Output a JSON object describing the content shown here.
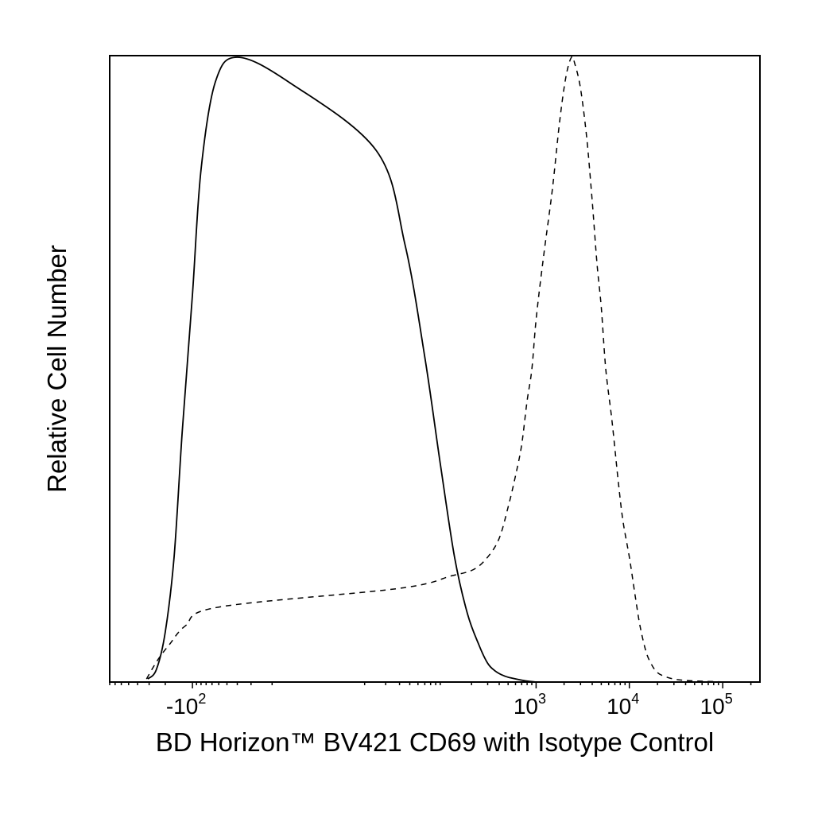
{
  "chart_data": {
    "type": "line",
    "title": "",
    "xlabel": "BD Horizon™ BV421 CD69 with Isotype Control",
    "ylabel": "Relative Cell Number",
    "x_scale": "biexponential (logicle)",
    "x_ticks": [
      {
        "value": -100,
        "base": "-10",
        "exponent": "2"
      },
      {
        "value": 1000,
        "base": "10",
        "exponent": "3"
      },
      {
        "value": 10000,
        "base": "10",
        "exponent": "4"
      },
      {
        "value": 100000,
        "base": "10",
        "exponent": "5"
      }
    ],
    "xlim": [
      -800,
      250000
    ],
    "ylim": [
      0,
      1
    ],
    "y_ticks": [],
    "grid": false,
    "legend": "none",
    "series": [
      {
        "style": "solid",
        "x": [
          -310,
          -250,
          -200,
          -160,
          -130,
          -100,
          -80,
          -55,
          -30,
          -5,
          15,
          35,
          60,
          90,
          130,
          180,
          240,
          300,
          360,
          450,
          560,
          700,
          850,
          1000
        ],
        "y": [
          0.005,
          0.02,
          0.08,
          0.2,
          0.4,
          0.62,
          0.82,
          0.96,
          1.0,
          0.96,
          0.85,
          0.7,
          0.52,
          0.35,
          0.2,
          0.11,
          0.06,
          0.03,
          0.018,
          0.01,
          0.006,
          0.003,
          0.001,
          0.0
        ]
      },
      {
        "style": "dashed",
        "x": [
          -320,
          -280,
          -230,
          -180,
          -120,
          -50,
          30,
          120,
          210,
          300,
          400,
          500,
          600,
          700,
          800,
          900,
          1000,
          1200,
          1500,
          1800,
          2100,
          2400,
          2600,
          3000,
          3500,
          4000,
          4500,
          5000,
          5600,
          6500,
          7500,
          8500,
          10000,
          11500,
          13000,
          15000,
          17000,
          20000,
          25000,
          32000,
          45000,
          70000,
          110000
        ],
        "y": [
          0.005,
          0.02,
          0.04,
          0.06,
          0.09,
          0.12,
          0.15,
          0.17,
          0.18,
          0.2,
          0.23,
          0.28,
          0.33,
          0.38,
          0.45,
          0.5,
          0.58,
          0.68,
          0.79,
          0.9,
          0.97,
          1.0,
          0.99,
          0.95,
          0.87,
          0.77,
          0.67,
          0.6,
          0.5,
          0.42,
          0.33,
          0.26,
          0.2,
          0.14,
          0.09,
          0.05,
          0.03,
          0.015,
          0.008,
          0.004,
          0.002,
          0.001,
          0.0
        ]
      }
    ]
  }
}
